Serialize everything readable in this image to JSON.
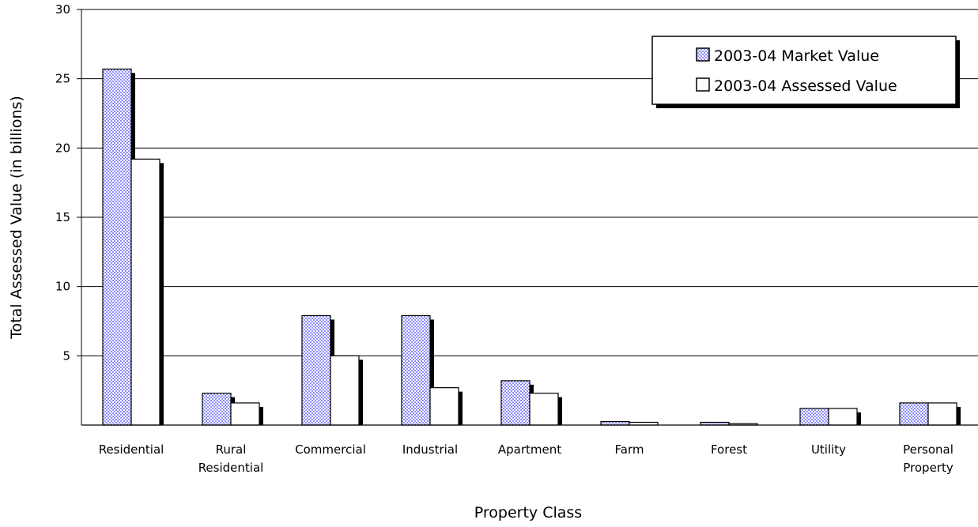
{
  "chart_data": {
    "type": "bar",
    "title": "",
    "xlabel": "Property Class",
    "ylabel": "Total Assessed Value (in billions)",
    "ylim": [
      0,
      30
    ],
    "yticks": [
      5,
      10,
      15,
      20,
      25,
      30
    ],
    "grid": true,
    "legend_position": "top-right",
    "categories": [
      "Residential",
      "Rural Residential",
      "Commercial",
      "Industrial",
      "Apartment",
      "Farm",
      "Forest",
      "Utility",
      "Personal Property"
    ],
    "category_lines": [
      [
        "Residential"
      ],
      [
        "Rural",
        "Residential"
      ],
      [
        "Commercial"
      ],
      [
        "Industrial"
      ],
      [
        "Apartment"
      ],
      [
        "Farm"
      ],
      [
        "Forest"
      ],
      [
        "Utility"
      ],
      [
        "Personal",
        "Property"
      ]
    ],
    "series": [
      {
        "name": "2003-04 Market Value",
        "fill": "checkered-blue",
        "color": "#9999ff",
        "values": [
          25.7,
          2.3,
          7.9,
          7.9,
          3.2,
          0.25,
          0.2,
          1.2,
          1.6
        ]
      },
      {
        "name": "2003-04 Assessed Value",
        "fill": "white",
        "color": "#ffffff",
        "values": [
          19.2,
          1.6,
          5.0,
          2.7,
          2.3,
          0.2,
          0.1,
          1.2,
          1.6
        ]
      }
    ]
  }
}
